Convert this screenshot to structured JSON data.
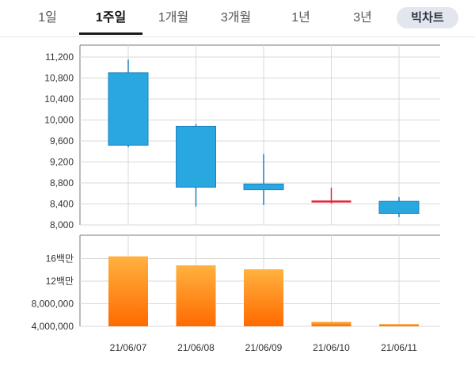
{
  "tabs": [
    {
      "label": "1일",
      "active": false
    },
    {
      "label": "1주일",
      "active": true
    },
    {
      "label": "1개월",
      "active": false
    },
    {
      "label": "3개월",
      "active": false
    },
    {
      "label": "1년",
      "active": false
    },
    {
      "label": "3년",
      "active": false
    }
  ],
  "pill_label": "빅차트",
  "colors": {
    "candle_down": "#29a8e0",
    "candle_down_border": "#1e80c0",
    "doji": "#e2233a",
    "volume_top": "#ffb23f",
    "volume_bottom": "#ff6a00",
    "grid": "#d9d9d9",
    "axis": "#777777"
  },
  "chart_data": [
    {
      "type": "candlestick",
      "categories": [
        "21/06/07",
        "21/06/08",
        "21/06/09",
        "21/06/10",
        "21/06/11"
      ],
      "series": [
        {
          "open": 10900,
          "high": 11150,
          "low": 9480,
          "close": 9520
        },
        {
          "open": 9880,
          "high": 9920,
          "low": 8350,
          "close": 8720
        },
        {
          "open": 8780,
          "high": 9350,
          "low": 8380,
          "close": 8670
        },
        {
          "open": 8450,
          "high": 8710,
          "low": 8410,
          "close": 8440
        },
        {
          "open": 8450,
          "high": 8530,
          "low": 8150,
          "close": 8220
        }
      ],
      "y_ticks": [
        "11,200",
        "10,800",
        "10,400",
        "10,000",
        "9,600",
        "9,200",
        "8,800",
        "8,400",
        "8,000"
      ],
      "y_tick_values": [
        11200,
        10800,
        10400,
        10000,
        9600,
        9200,
        8800,
        8400,
        8000
      ],
      "ylim": [
        8000,
        11400
      ],
      "grid": true
    },
    {
      "type": "bar",
      "categories": [
        "21/06/07",
        "21/06/08",
        "21/06/09",
        "21/06/10",
        "21/06/11"
      ],
      "values": [
        16400000,
        14800000,
        14100000,
        4800000,
        4400000
      ],
      "y_ticks": [
        "16백만",
        "12백만",
        "8,000,000",
        "4,000,000"
      ],
      "y_tick_values": [
        16000000,
        12000000,
        8000000,
        4000000
      ],
      "ylim": [
        4000000,
        19500000
      ],
      "grid": true
    }
  ]
}
